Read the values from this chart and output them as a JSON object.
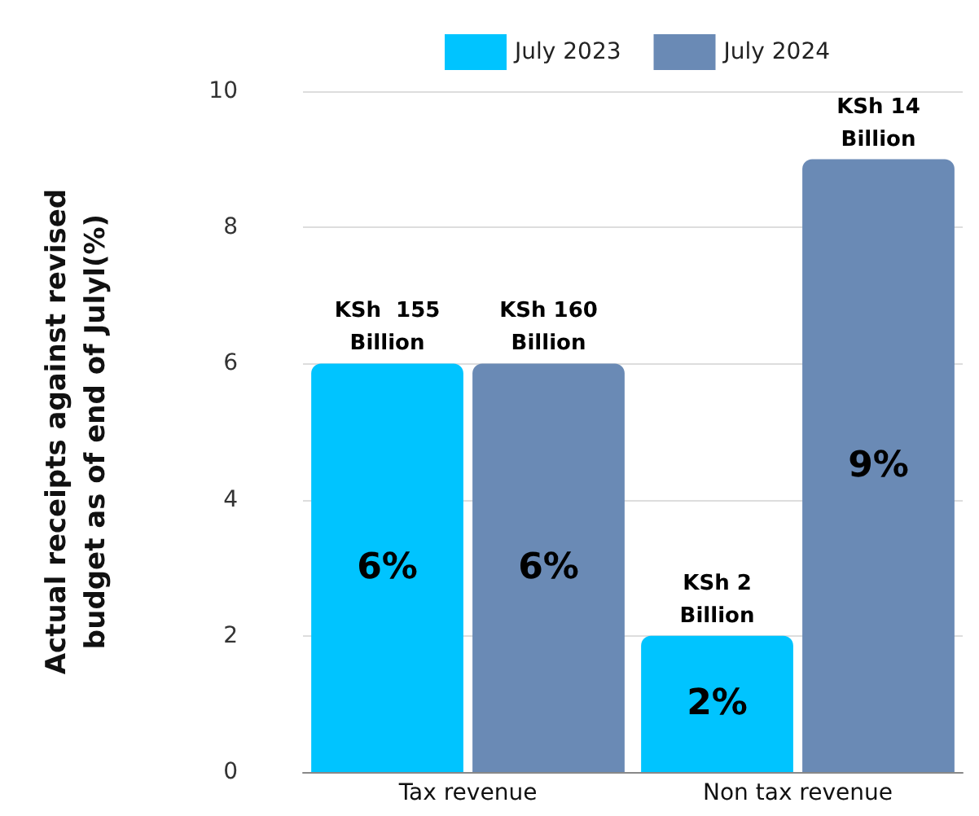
{
  "chart_data": {
    "type": "bar",
    "ylabel": "Actual receipts against revised budget as of end of Julyl(%)",
    "categories": [
      "Tax revenue",
      "Non tax revenue"
    ],
    "series": [
      {
        "name": "July 2023",
        "color": "#00c4ff",
        "values": [
          6,
          2
        ],
        "value_labels": [
          "6%",
          "2%"
        ]
      },
      {
        "name": "July 2024",
        "color": "#6a8ab5",
        "values": [
          6,
          9
        ],
        "value_labels": [
          "6%",
          "9%"
        ]
      }
    ],
    "ylim": [
      0,
      10
    ],
    "yticks": [
      0,
      2,
      4,
      6,
      8,
      10
    ],
    "grid": "y",
    "legend": "top",
    "annotations": [
      "KSh  155\nBillion",
      "KSh 160\nBillion",
      "KSh 2\nBillion",
      "KSh 14\nBillion"
    ]
  }
}
